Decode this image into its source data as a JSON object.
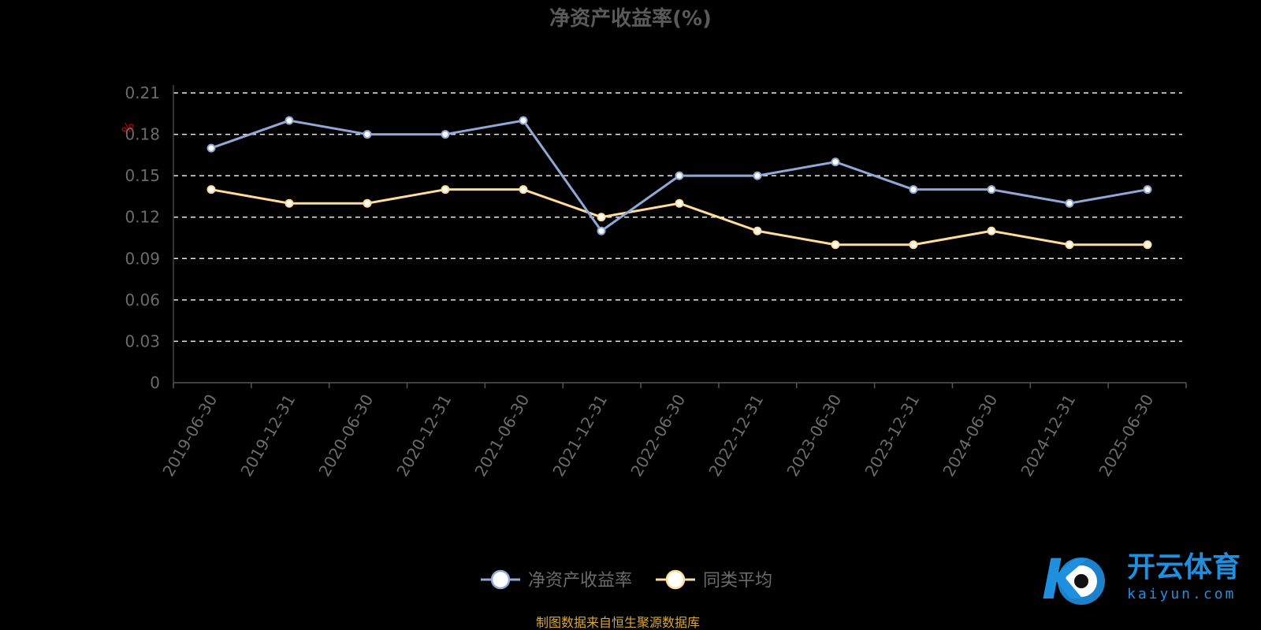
{
  "chart_data": {
    "type": "line",
    "title": "净资产收益率(%)",
    "ylabel": "%",
    "x": [
      "2019-06-30",
      "2019-12-31",
      "2020-06-30",
      "2020-12-31",
      "2021-06-30",
      "2021-12-31",
      "2022-06-30",
      "2022-12-31",
      "2023-06-30",
      "2023-12-31",
      "2024-06-30",
      "2024-12-31",
      "2025-06-30"
    ],
    "ylim": [
      0,
      0.21
    ],
    "yticks": [
      "0",
      "0.03",
      "0.06",
      "0.09",
      "0.12",
      "0.15",
      "0.18",
      "0.21"
    ],
    "grid": true,
    "legend_position": "bottom-center",
    "series": [
      {
        "name": "净资产收益率",
        "color": "#8fa8d6",
        "values": [
          0.17,
          0.19,
          0.18,
          0.18,
          0.19,
          0.11,
          0.15,
          0.15,
          0.16,
          0.14,
          0.14,
          0.13,
          0.14
        ]
      },
      {
        "name": "同类平均",
        "color": "#ffdc9a",
        "values": [
          0.14,
          0.13,
          0.13,
          0.14,
          0.14,
          0.12,
          0.13,
          0.11,
          0.1,
          0.1,
          0.11,
          0.1,
          0.1
        ]
      }
    ]
  },
  "source_note": "制图数据来自恒生聚源数据库",
  "watermark": {
    "name": "开云体育",
    "domain": "kaiyun.com",
    "logo_letter": "K"
  }
}
